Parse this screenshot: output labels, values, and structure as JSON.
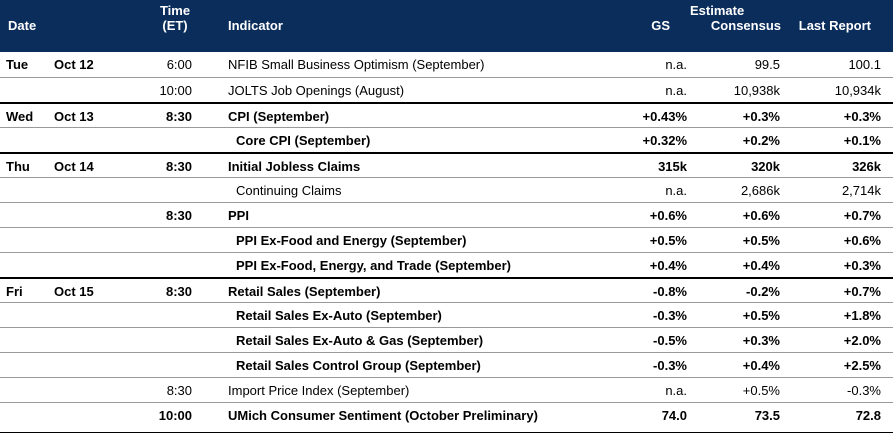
{
  "header": {
    "date": "Date",
    "time_line1": "Time",
    "time_line2": "(ET)",
    "indicator": "Indicator",
    "estimate": "Estimate",
    "gs": "GS",
    "consensus": "Consensus",
    "last_report": "Last Report"
  },
  "rows": [
    {
      "day": "Tue",
      "date": "Oct 12",
      "time": "6:00",
      "indicator": "NFIB Small Business Optimism (September)",
      "gs": "n.a.",
      "consensus": "99.5",
      "last": "100.1",
      "bold": false,
      "indent": false
    },
    {
      "day": "",
      "date": "",
      "time": "10:00",
      "indicator": "JOLTS Job Openings (August)",
      "gs": "n.a.",
      "consensus": "10,938k",
      "last": "10,934k",
      "bold": false,
      "indent": false
    },
    {
      "day": "Wed",
      "date": "Oct 13",
      "time": "8:30",
      "indicator": "CPI (September)",
      "gs": "+0.43%",
      "consensus": "+0.3%",
      "last": "+0.3%",
      "bold": true,
      "indent": false
    },
    {
      "day": "",
      "date": "",
      "time": "",
      "indicator": "Core CPI (September)",
      "gs": "+0.32%",
      "consensus": "+0.2%",
      "last": "+0.1%",
      "bold": true,
      "indent": true
    },
    {
      "day": "Thu",
      "date": "Oct 14",
      "time": "8:30",
      "indicator": "Initial Jobless Claims",
      "gs": "315k",
      "consensus": "320k",
      "last": "326k",
      "bold": true,
      "indent": false
    },
    {
      "day": "",
      "date": "",
      "time": "",
      "indicator": "Continuing Claims",
      "gs": "n.a.",
      "consensus": "2,686k",
      "last": "2,714k",
      "bold": false,
      "indent": true
    },
    {
      "day": "",
      "date": "",
      "time": "8:30",
      "indicator": "PPI",
      "gs": "+0.6%",
      "consensus": "+0.6%",
      "last": "+0.7%",
      "bold": true,
      "indent": false
    },
    {
      "day": "",
      "date": "",
      "time": "",
      "indicator": "PPI Ex-Food and Energy (September)",
      "gs": "+0.5%",
      "consensus": "+0.5%",
      "last": "+0.6%",
      "bold": true,
      "indent": true
    },
    {
      "day": "",
      "date": "",
      "time": "",
      "indicator": "PPI Ex-Food, Energy, and Trade (September)",
      "gs": "+0.4%",
      "consensus": "+0.4%",
      "last": "+0.3%",
      "bold": true,
      "indent": true
    },
    {
      "day": "Fri",
      "date": "Oct 15",
      "time": "8:30",
      "indicator": "Retail Sales (September)",
      "gs": "-0.8%",
      "consensus": "-0.2%",
      "last": "+0.7%",
      "bold": true,
      "indent": false
    },
    {
      "day": "",
      "date": "",
      "time": "",
      "indicator": "Retail Sales Ex-Auto (September)",
      "gs": "-0.3%",
      "consensus": "+0.5%",
      "last": "+1.8%",
      "bold": true,
      "indent": true
    },
    {
      "day": "",
      "date": "",
      "time": "",
      "indicator": "Retail Sales Ex-Auto & Gas (September)",
      "gs": "-0.5%",
      "consensus": "+0.3%",
      "last": "+2.0%",
      "bold": true,
      "indent": true
    },
    {
      "day": "",
      "date": "",
      "time": "",
      "indicator": "Retail Sales Control Group (September)",
      "gs": "-0.3%",
      "consensus": "+0.4%",
      "last": "+2.5%",
      "bold": true,
      "indent": true
    },
    {
      "day": "",
      "date": "",
      "time": "8:30",
      "indicator": "Import Price Index (September)",
      "gs": "n.a.",
      "consensus": "+0.5%",
      "last": "-0.3%",
      "bold": false,
      "indent": false
    },
    {
      "day": "",
      "date": "",
      "time": "10:00",
      "indicator": "UMich Consumer Sentiment (October Preliminary)",
      "gs": "74.0",
      "consensus": "73.5",
      "last": "72.8",
      "bold": true,
      "indent": false
    }
  ],
  "colors": {
    "header_bg": "#0b2d5b",
    "header_text": "#ffffff"
  }
}
